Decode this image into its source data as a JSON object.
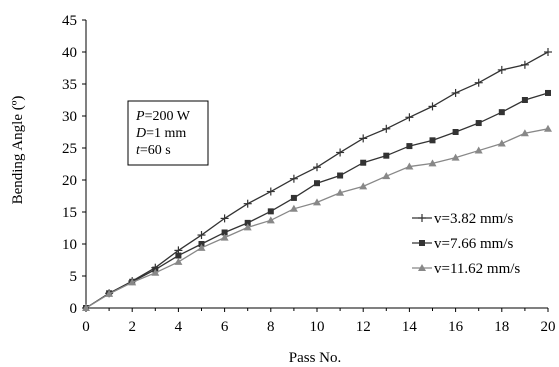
{
  "chart_data": {
    "type": "line",
    "xlabel": "Pass No.",
    "ylabel": "Bending Angle (º)",
    "xlim": [
      0,
      20
    ],
    "ylim": [
      0,
      45
    ],
    "x_ticks": [
      "0",
      "2",
      "4",
      "6",
      "8",
      "10",
      "12",
      "14",
      "16",
      "18",
      "20"
    ],
    "y_ticks": [
      "0",
      "5",
      "10",
      "15",
      "20",
      "25",
      "30",
      "35",
      "40",
      "45"
    ],
    "grid": false,
    "legend_position": "lower-right",
    "x": [
      0,
      1,
      2,
      3,
      4,
      5,
      6,
      7,
      8,
      9,
      10,
      11,
      12,
      13,
      14,
      15,
      16,
      17,
      18,
      19,
      20
    ],
    "series": [
      {
        "name": "v=3.82 mm/s",
        "marker": "plus",
        "color": "#333333",
        "values": [
          0,
          2.3,
          4.2,
          6.3,
          9.0,
          11.4,
          14.0,
          16.3,
          18.2,
          20.2,
          22.0,
          24.3,
          26.5,
          28.0,
          29.8,
          31.5,
          33.6,
          35.2,
          37.2,
          38.0,
          40.0
        ]
      },
      {
        "name": "v=7.66 mm/s",
        "marker": "square",
        "color": "#333333",
        "values": [
          0,
          2.3,
          4.1,
          6.0,
          8.2,
          10.0,
          11.8,
          13.3,
          15.1,
          17.2,
          19.5,
          20.7,
          22.7,
          23.8,
          25.3,
          26.2,
          27.5,
          28.9,
          30.6,
          32.5,
          33.6
        ]
      },
      {
        "name": "v=11.62 mm/s",
        "marker": "triangle",
        "color": "#888888",
        "values": [
          0,
          2.2,
          4.0,
          5.5,
          7.2,
          9.4,
          11.0,
          12.6,
          13.7,
          15.5,
          16.5,
          18.0,
          19.0,
          20.6,
          22.1,
          22.6,
          23.5,
          24.6,
          25.7,
          27.3,
          28.0
        ]
      }
    ],
    "annotation": {
      "lines": [
        {
          "var": "P",
          "rest": "=200 W"
        },
        {
          "var": "D",
          "rest": "=1 mm"
        },
        {
          "var": "t",
          "rest": "=60 s"
        }
      ]
    }
  }
}
